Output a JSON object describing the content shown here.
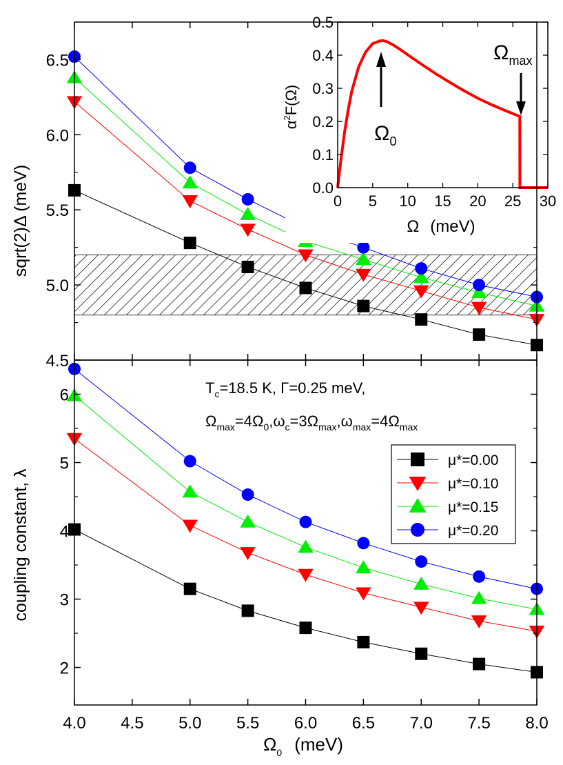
{
  "chart_data": [
    {
      "type": "line",
      "panel": "top",
      "ylabel": "sqrt(2)Δ (meV)",
      "xlim": [
        4.0,
        8.0
      ],
      "ylim": [
        4.5,
        6.75
      ],
      "yticks": [
        "4.5",
        "5.0",
        "5.5",
        "6.0",
        "6.5"
      ],
      "ytick_values": [
        4.5,
        5.0,
        5.5,
        6.0,
        6.5
      ],
      "hatched_band": [
        4.8,
        5.2
      ],
      "x": [
        4.0,
        5.0,
        5.5,
        6.0,
        6.5,
        7.0,
        7.5,
        8.0
      ],
      "series": [
        {
          "name": "μ*=0.00",
          "color": "#000000",
          "marker": "square",
          "values": [
            5.63,
            5.28,
            5.12,
            4.98,
            4.86,
            4.77,
            4.67,
            4.6
          ]
        },
        {
          "name": "μ*=0.10",
          "color": "#ff0000",
          "marker": "triangle-down",
          "values": [
            6.22,
            5.56,
            5.37,
            5.2,
            5.07,
            4.96,
            4.85,
            4.77
          ]
        },
        {
          "name": "μ*=0.15",
          "color": "#00ee00",
          "marker": "triangle-up",
          "values": [
            6.38,
            5.68,
            5.47,
            5.29,
            5.17,
            5.05,
            4.95,
            4.86
          ]
        },
        {
          "name": "μ*=0.20",
          "color": "#0000ff",
          "marker": "circle",
          "values": [
            6.52,
            5.78,
            5.57,
            5.38,
            5.25,
            5.11,
            5.0,
            4.92
          ]
        }
      ]
    },
    {
      "type": "line",
      "panel": "bottom",
      "ylabel": "coupling constant, λ",
      "xlabel": "Ω",
      "xlabel_sub": "0",
      "xlabel_unit": "(meV)",
      "xlim": [
        4.0,
        8.0
      ],
      "ylim": [
        1.45,
        6.5
      ],
      "xticks": [
        "4.0",
        "4.5",
        "5.0",
        "5.5",
        "6.0",
        "6.5",
        "7.0",
        "7.5",
        "8.0"
      ],
      "xtick_values": [
        4.0,
        4.5,
        5.0,
        5.5,
        6.0,
        6.5,
        7.0,
        7.5,
        8.0
      ],
      "yticks": [
        "2",
        "3",
        "4",
        "5",
        "6"
      ],
      "ytick_values": [
        2,
        3,
        4,
        5,
        6
      ],
      "x": [
        4.0,
        5.0,
        5.5,
        6.0,
        6.5,
        7.0,
        7.5,
        8.0
      ],
      "series": [
        {
          "name": "μ*=0.00",
          "color": "#000000",
          "marker": "square",
          "values": [
            4.02,
            3.15,
            2.83,
            2.58,
            2.37,
            2.2,
            2.05,
            1.93
          ]
        },
        {
          "name": "μ*=0.10",
          "color": "#ff0000",
          "marker": "triangle-down",
          "values": [
            5.35,
            4.08,
            3.68,
            3.36,
            3.09,
            2.88,
            2.68,
            2.53
          ]
        },
        {
          "name": "μ*=0.15",
          "color": "#00ee00",
          "marker": "triangle-up",
          "values": [
            5.98,
            4.57,
            4.13,
            3.76,
            3.46,
            3.22,
            3.01,
            2.85
          ]
        },
        {
          "name": "μ*=0.20",
          "color": "#0000ff",
          "marker": "circle",
          "values": [
            6.37,
            5.02,
            4.53,
            4.13,
            3.82,
            3.55,
            3.33,
            3.15
          ]
        }
      ],
      "annotation_line1": "Tc=18.5 K, Γ=0.25 meV,",
      "annotation_line2": "Ωmax=4Ω0,ωc=3Ωmax,ωmax=4Ωmax",
      "legend_placement": "right",
      "legend": [
        "μ*=0.00",
        "μ*=0.10",
        "μ*=0.15",
        "μ*=0.20"
      ]
    },
    {
      "type": "line",
      "panel": "inset",
      "xlabel": "Ω",
      "xlabel_unit": "(meV)",
      "ylabel": "α²F(Ω)",
      "xlim": [
        0,
        30
      ],
      "ylim": [
        0,
        0.5
      ],
      "xticks": [
        "0",
        "5",
        "10",
        "15",
        "20",
        "25",
        "30"
      ],
      "xtick_values": [
        0,
        5,
        10,
        15,
        20,
        25,
        30
      ],
      "yticks": [
        "0.0",
        "0.1",
        "0.2",
        "0.3",
        "0.4",
        "0.5"
      ],
      "ytick_values": [
        0,
        0.1,
        0.2,
        0.3,
        0.4,
        0.5
      ],
      "color": "#ff0000",
      "x": [
        0,
        0.5,
        1,
        1.5,
        2,
        3,
        4,
        5,
        6,
        6.5,
        7,
        8,
        9,
        10,
        12,
        14,
        16,
        18,
        20,
        22,
        24,
        26,
        26.01,
        30
      ],
      "values": [
        0,
        0.09,
        0.17,
        0.235,
        0.29,
        0.365,
        0.41,
        0.435,
        0.443,
        0.444,
        0.441,
        0.43,
        0.416,
        0.401,
        0.372,
        0.344,
        0.318,
        0.293,
        0.27,
        0.25,
        0.232,
        0.215,
        0,
        0
      ],
      "annotations": [
        {
          "text": "Ω",
          "sub": "0",
          "value_x": 6.3
        },
        {
          "text": "Ω",
          "sub": "max",
          "value_x": 26
        }
      ]
    }
  ]
}
